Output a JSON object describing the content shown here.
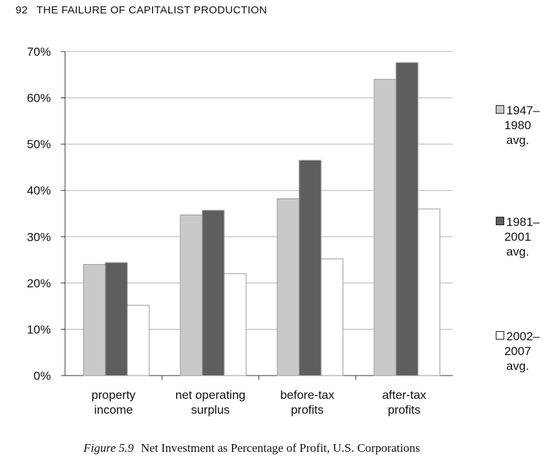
{
  "header": {
    "page_number": "92",
    "running_title": "THE FAILURE OF CAPITALIST PRODUCTION"
  },
  "caption": {
    "figure_label": "Figure 5.9",
    "text": "Net Investment as Percentage of Profit, U.S. Corporations"
  },
  "colors": {
    "series1": "#c9c9c9",
    "series2": "#5e5e5e",
    "series3": "#ffffff",
    "gridline": "#b5b5b5",
    "bar_border": "#9a9a9a"
  },
  "chart_data": {
    "type": "bar",
    "categories": [
      "property income",
      "net operating surplus",
      "before-tax profits",
      "after-tax profits"
    ],
    "category_lines": [
      [
        "property",
        "income"
      ],
      [
        "net operating",
        "surplus"
      ],
      [
        "before-tax",
        "profits"
      ],
      [
        "after-tax",
        "profits"
      ]
    ],
    "series": [
      {
        "name": "1947–1980 avg.",
        "legend_lines": [
          "1947–",
          "1980",
          "avg."
        ],
        "values": [
          24,
          34.7,
          38.2,
          64
        ]
      },
      {
        "name": "1981–2001 avg.",
        "legend_lines": [
          "1981–",
          "2001",
          "avg."
        ],
        "values": [
          24.4,
          35.7,
          46.5,
          67.6
        ]
      },
      {
        "name": "2002–2007 avg.",
        "legend_lines": [
          "2002–",
          "2007",
          "avg."
        ],
        "values": [
          15.2,
          22,
          25.2,
          36
        ]
      }
    ],
    "yticks": [
      "0%",
      "10%",
      "20%",
      "30%",
      "40%",
      "50%",
      "60%",
      "70%"
    ],
    "ylim": [
      0,
      70
    ],
    "grid": true,
    "legend_position": "right"
  }
}
